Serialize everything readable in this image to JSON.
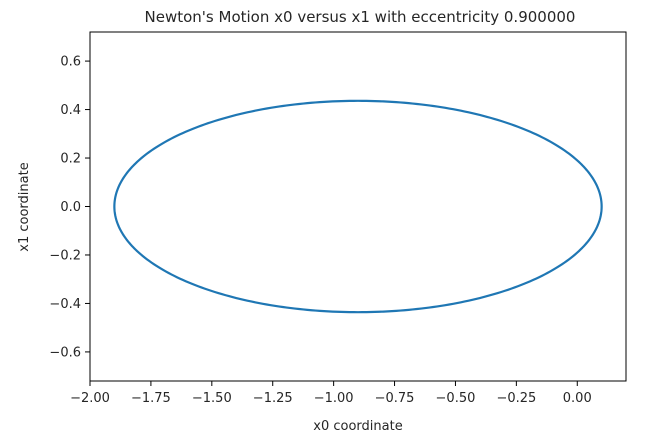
{
  "chart_data": {
    "type": "line",
    "title": "Newton's Motion x0 versus x1 with eccentricity 0.900000",
    "xlabel": "x0 coordinate",
    "ylabel": "x1 coordinate",
    "xlim": [
      -2.0,
      0.2
    ],
    "ylim": [
      -0.72,
      0.72
    ],
    "x_ticks": [
      -2.0,
      -1.75,
      -1.5,
      -1.25,
      -1.0,
      -0.75,
      -0.5,
      -0.25,
      0.0
    ],
    "x_tick_labels": [
      "−2.00",
      "−1.75",
      "−1.50",
      "−1.25",
      "−1.00",
      "−0.75",
      "−0.50",
      "−0.25",
      "0.00"
    ],
    "y_ticks": [
      0.6,
      0.4,
      0.2,
      0.0,
      -0.2,
      -0.4,
      -0.6
    ],
    "y_tick_labels": [
      "0.6",
      "0.4",
      "0.2",
      "0.0",
      "−0.2",
      "−0.4",
      "−0.6"
    ],
    "grid": false,
    "legend": "none",
    "series": [
      {
        "color": "#1f77b4",
        "shape": "ellipse",
        "center": [
          -0.9,
          0.0
        ],
        "semi_axis_x": 1.0,
        "semi_axis_y": 0.436,
        "x_range": [
          -1.9,
          0.1
        ],
        "y_range": [
          -0.436,
          0.436
        ]
      }
    ]
  }
}
